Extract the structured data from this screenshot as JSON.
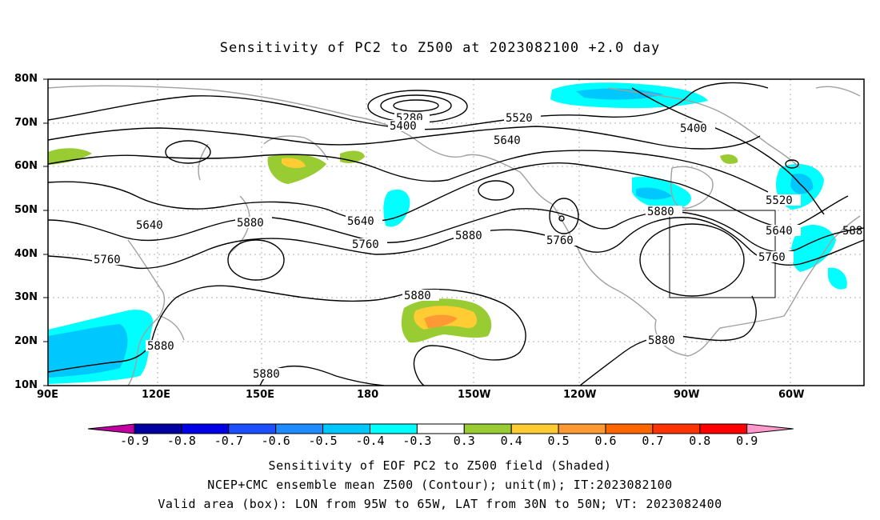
{
  "title": "Sensitivity of PC2 to Z500 at 2023082100 +2.0 day",
  "lat_labels": [
    "80N",
    "70N",
    "60N",
    "50N",
    "40N",
    "30N",
    "20N",
    "10N"
  ],
  "lon_labels": [
    "90E",
    "120E",
    "150E",
    "180",
    "150W",
    "120W",
    "90W",
    "60W"
  ],
  "contour_labels": {
    "c5280": "5280",
    "c5400a": "5400",
    "c5520a": "5520",
    "c5640a": "5640",
    "c5400b": "5400",
    "c5520b": "5520",
    "c5640b": "5640",
    "c5640c": "5640",
    "c5880a": "5880",
    "c5760a": "5760",
    "c5640d": "5640",
    "c5760b": "5760",
    "c5880b": "5880",
    "c5760c": "5760",
    "c5880c": "5880",
    "c5760d": "5760",
    "c5880d": "5880",
    "c5880e": "5880",
    "c5880f": "5880",
    "c5880g": "5880",
    "c588trunc": "588"
  },
  "colorbar": {
    "labels": [
      "-0.9",
      "-0.8",
      "-0.7",
      "-0.6",
      "-0.5",
      "-0.4",
      "-0.3",
      "0.3",
      "0.4",
      "0.5",
      "0.6",
      "0.7",
      "0.8",
      "0.9"
    ],
    "colors": [
      "#0000a0",
      "#0000e6",
      "#1e50ff",
      "#1e8cff",
      "#00c8ff",
      "#00ffff",
      "#ffffff",
      "#99cc33",
      "#ffcc33",
      "#ff9933",
      "#ff6600",
      "#ff3300",
      "#ff0000"
    ],
    "neg_end_color": "#c000a0",
    "pos_end_color": "#ff99cc"
  },
  "captions": {
    "line1": "Sensitivity of EOF PC2 to Z500 field (Shaded)",
    "line2": "NCEP+CMC ensemble mean Z500 (Contour); unit(m); IT:2023082100",
    "line3": "Valid area (box): LON from 95W to 65W, LAT from 30N to 50N; VT: 2023082400"
  },
  "valid_box": {
    "lon_west": "95W",
    "lon_east": "65W",
    "lat_south": "30N",
    "lat_north": "50N"
  }
}
